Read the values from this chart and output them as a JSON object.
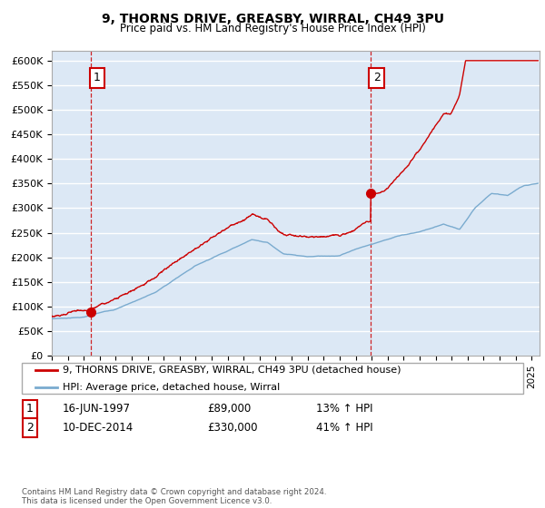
{
  "title1": "9, THORNS DRIVE, GREASBY, WIRRAL, CH49 3PU",
  "title2": "Price paid vs. HM Land Registry's House Price Index (HPI)",
  "ylabel_ticks": [
    "£0",
    "£50K",
    "£100K",
    "£150K",
    "£200K",
    "£250K",
    "£300K",
    "£350K",
    "£400K",
    "£450K",
    "£500K",
    "£550K",
    "£600K"
  ],
  "ytick_values": [
    0,
    50000,
    100000,
    150000,
    200000,
    250000,
    300000,
    350000,
    400000,
    450000,
    500000,
    550000,
    600000
  ],
  "xlim_start": 1995.0,
  "xlim_end": 2025.5,
  "ylim_min": 0,
  "ylim_max": 620000,
  "legend_line1": "9, THORNS DRIVE, GREASBY, WIRRAL, CH49 3PU (detached house)",
  "legend_line2": "HPI: Average price, detached house, Wirral",
  "sale1_date": 1997.46,
  "sale1_price": 89000,
  "sale2_date": 2014.94,
  "sale2_price": 330000,
  "ann1_date": "16-JUN-1997",
  "ann1_price": "£89,000",
  "ann1_hpi": "13% ↑ HPI",
  "ann2_date": "10-DEC-2014",
  "ann2_price": "£330,000",
  "ann2_hpi": "41% ↑ HPI",
  "copyright": "Contains HM Land Registry data © Crown copyright and database right 2024.\nThis data is licensed under the Open Government Licence v3.0.",
  "line_color_red": "#cc0000",
  "line_color_blue": "#7aabcf",
  "bg_color": "#dce8f5",
  "grid_color": "#ffffff",
  "vline_color": "#cc0000",
  "box_color": "#cc0000"
}
